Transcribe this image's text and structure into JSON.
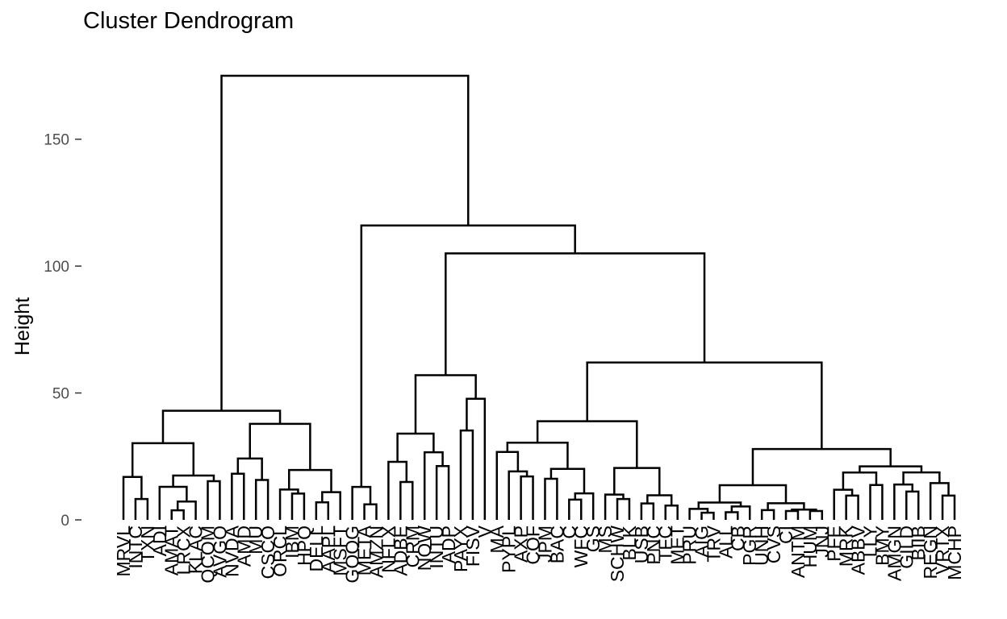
{
  "chart_data": {
    "type": "dendrogram",
    "title": "Cluster Dendrogram",
    "xlabel": "",
    "ylabel": "Height",
    "ylim": [
      0,
      175
    ],
    "yticks": [
      0,
      50,
      100,
      150
    ],
    "grid": false,
    "legend": "none",
    "leaf_count": 70,
    "leaves": [
      "MRVL",
      "INTC",
      "TXN",
      "ADI",
      "AMAT",
      "LRCX",
      "KLAC",
      "QCOM",
      "AVGO",
      "NVDA",
      "AMD",
      "MU",
      "CSCO",
      "ORCL",
      "IBM",
      "HPQ",
      "DELL",
      "AAPL",
      "MSFT",
      "GOOG",
      "META",
      "AMZN",
      "NFLX",
      "ADBE",
      "CRM",
      "NOW",
      "INTU",
      "ADP",
      "PAYX",
      "FISV",
      "V",
      "MA",
      "PYPL",
      "AXP",
      "COF",
      "JPM",
      "BAC",
      "C",
      "WFC",
      "GS",
      "MS",
      "SCHW",
      "BLK",
      "USB",
      "PNC",
      "TFC",
      "MET",
      "PRU",
      "AIG",
      "TRV",
      "ALL",
      "CB",
      "PGR",
      "UNH",
      "CVS",
      "CI",
      "ANTM",
      "HUM",
      "JNJ",
      "PFE",
      "MRK",
      "ABBV",
      "LLY",
      "BMY",
      "AMGN",
      "GILD",
      "BIIB",
      "REGN",
      "VRTX",
      "MCHP"
    ],
    "merges": [
      {
        "height": 175,
        "children": [
          "left-cluster",
          "right-cluster"
        ]
      },
      {
        "height": 116,
        "children": [
          "cluster-mid-a",
          "cluster-mid-b"
        ]
      },
      {
        "height": 105,
        "children": [
          "cluster-middle",
          "cluster-right"
        ]
      },
      {
        "height": 62,
        "children": [
          "cluster-c",
          "cluster-d"
        ]
      },
      {
        "height": 57,
        "children": [
          "cluster-e",
          "cluster-f"
        ]
      },
      {
        "height": 53,
        "children": [
          "cluster-g",
          "cluster-h"
        ]
      },
      {
        "height": 47,
        "children": [
          "cluster-i",
          "cluster-j"
        ]
      },
      {
        "height": 43,
        "children": [
          "cluster-k",
          "cluster-l"
        ]
      },
      {
        "height": 40,
        "children": [
          "cluster-m",
          "cluster-n"
        ]
      },
      {
        "height": 37,
        "children": [
          "cluster-o",
          "cluster-p"
        ]
      },
      {
        "height": 34,
        "children": [
          "cluster-q",
          "cluster-r"
        ]
      },
      {
        "height": 32,
        "children": [
          "cluster-s",
          "cluster-t"
        ]
      },
      {
        "height": 29,
        "children": [
          "cluster-u",
          "cluster-v"
        ]
      },
      {
        "height": 25,
        "children": [
          "cluster-w",
          "cluster-x"
        ]
      },
      {
        "height": 23,
        "children": [
          "cluster-y",
          "cluster-z"
        ]
      }
    ],
    "color": "#000000"
  }
}
